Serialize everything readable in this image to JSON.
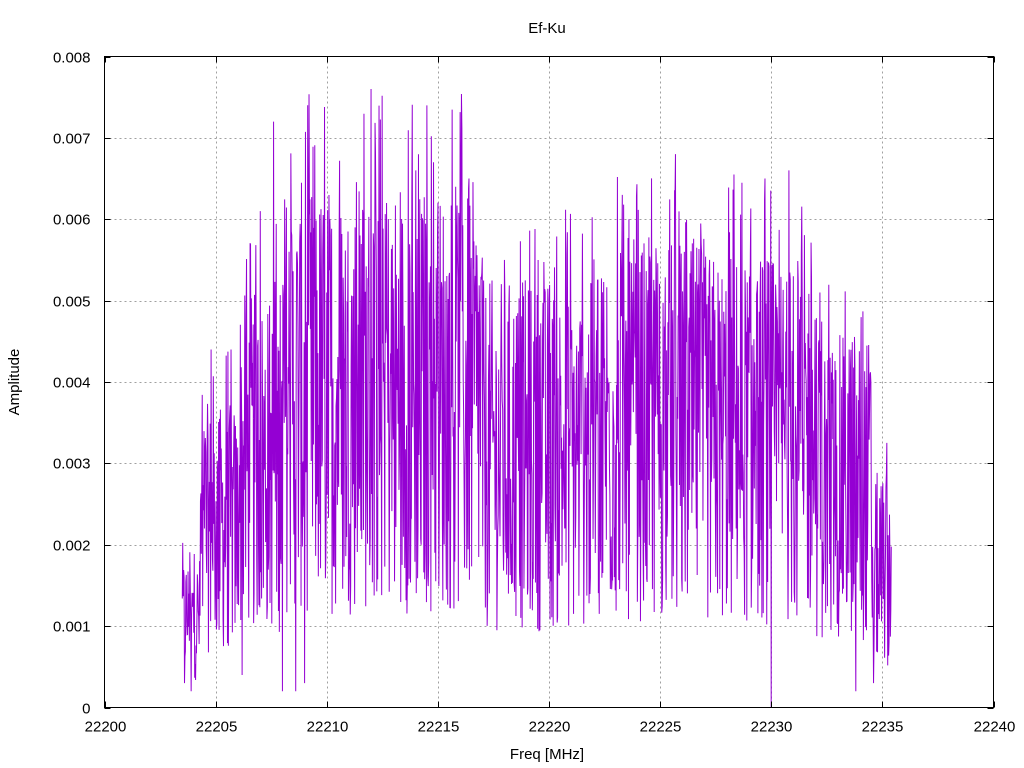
{
  "chart_data": {
    "type": "line",
    "title": "Ef-Ku",
    "xlabel": "Freq [MHz]",
    "ylabel": "Amplitude",
    "xlim": [
      22200,
      22240
    ],
    "ylim": [
      0,
      0.008
    ],
    "x_ticks": [
      22200,
      22205,
      22210,
      22215,
      22220,
      22225,
      22230,
      22235,
      22240
    ],
    "x_tick_labels": [
      "22200",
      "22205",
      "22210",
      "22215",
      "22220",
      "22225",
      "22230",
      "22235",
      "22240"
    ],
    "y_ticks": [
      0,
      0.001,
      0.002,
      0.003,
      0.004,
      0.005,
      0.006,
      0.007,
      0.008
    ],
    "y_tick_labels": [
      "0",
      "0.001",
      "0.002",
      "0.003",
      "0.004",
      "0.005",
      "0.006",
      "0.007",
      "0.008"
    ],
    "grid": true,
    "legend": "none",
    "series": [
      {
        "color": "#9400d3",
        "x_start": 22203.5,
        "x_end": 22235.4,
        "peaks": [
          {
            "x": 22203.6,
            "y": 0.0003
          },
          {
            "x": 22203.8,
            "y": 0.0014
          },
          {
            "x": 22204.2,
            "y": 0.0015
          },
          {
            "x": 22204.5,
            "y": 0.0022
          },
          {
            "x": 22204.8,
            "y": 0.0044
          },
          {
            "x": 22205.7,
            "y": 0.0044
          },
          {
            "x": 22207.0,
            "y": 0.0061
          },
          {
            "x": 22207.6,
            "y": 0.0072
          },
          {
            "x": 22208.0,
            "y": 0.0065
          },
          {
            "x": 22208.3,
            "y": 0.0056
          },
          {
            "x": 22210.0,
            "y": 0.0051
          },
          {
            "x": 22211.5,
            "y": 0.0058
          },
          {
            "x": 22212.0,
            "y": 0.0076
          },
          {
            "x": 22212.7,
            "y": 0.0062
          },
          {
            "x": 22214.0,
            "y": 0.0066
          },
          {
            "x": 22214.5,
            "y": 0.0074
          },
          {
            "x": 22214.8,
            "y": 0.0067
          },
          {
            "x": 22215.8,
            "y": 0.0064
          },
          {
            "x": 22216.4,
            "y": 0.0065
          },
          {
            "x": 22218.0,
            "y": 0.0055
          },
          {
            "x": 22219.5,
            "y": 0.0055
          },
          {
            "x": 22221.0,
            "y": 0.0044
          },
          {
            "x": 22223.3,
            "y": 0.0063
          },
          {
            "x": 22223.6,
            "y": 0.006
          },
          {
            "x": 22225.7,
            "y": 0.0068
          },
          {
            "x": 22226.7,
            "y": 0.0052
          },
          {
            "x": 22228.5,
            "y": 0.0042
          },
          {
            "x": 22230.0,
            "y": 0.007
          },
          {
            "x": 22230.8,
            "y": 0.0066
          },
          {
            "x": 22231.0,
            "y": 0.0053
          },
          {
            "x": 22232.2,
            "y": 0.0051
          },
          {
            "x": 22233.5,
            "y": 0.0044
          },
          {
            "x": 22234.5,
            "y": 0.0024
          },
          {
            "x": 22235.3,
            "y": 0.0023
          }
        ],
        "troughs": [
          {
            "x": 22203.9,
            "y": 0.0002
          },
          {
            "x": 22206.2,
            "y": 0.0004
          },
          {
            "x": 22208.0,
            "y": 0.0002
          },
          {
            "x": 22208.6,
            "y": 0.0002
          },
          {
            "x": 22209.0,
            "y": 0.0003
          },
          {
            "x": 22230.0,
            "y": 0.0
          },
          {
            "x": 22233.8,
            "y": 0.0002
          },
          {
            "x": 22234.6,
            "y": 0.0003
          },
          {
            "x": 22235.3,
            "y": 0.0008
          }
        ]
      }
    ]
  }
}
